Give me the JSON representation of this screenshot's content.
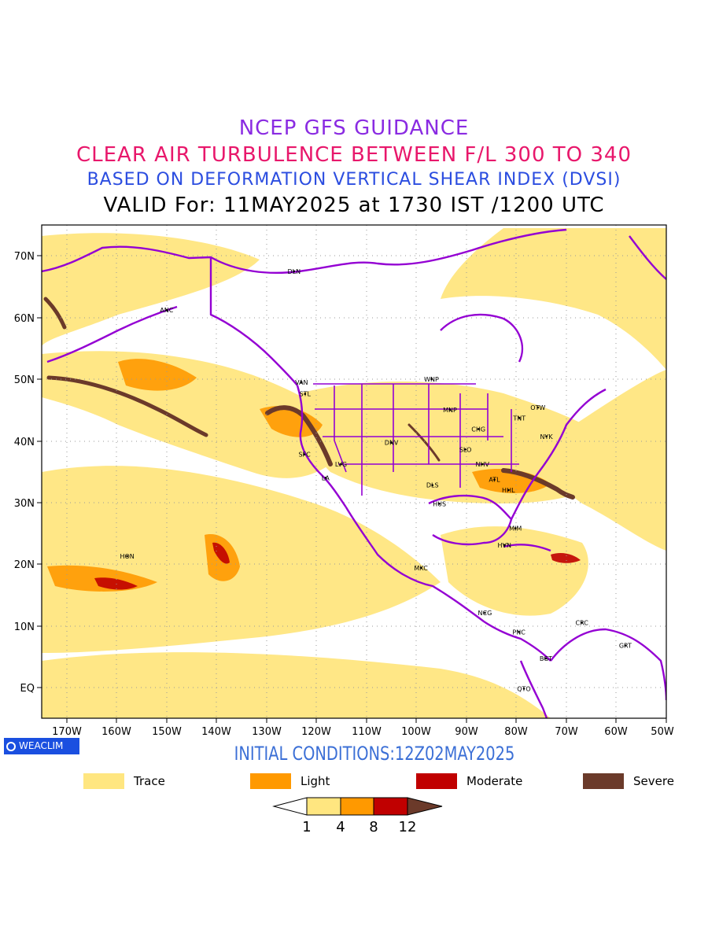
{
  "titles": {
    "line1": "NCEP GFS GUIDANCE",
    "line2": "CLEAR AIR TURBULENCE BETWEEN F/L 300 TO 340",
    "line3": "BASED ON DEFORMATION VERTICAL SHEAR INDEX (DVSI)",
    "line4": "VALID For: 11MAY2025 at 1730 IST /1200 UTC"
  },
  "axes": {
    "lat_labels": [
      "70N",
      "60N",
      "50N",
      "40N",
      "30N",
      "20N",
      "10N",
      "EQ"
    ],
    "lon_labels": [
      "170W",
      "160W",
      "150W",
      "140W",
      "130W",
      "120W",
      "110W",
      "100W",
      "90W",
      "80W",
      "70W",
      "60W",
      "50W"
    ],
    "lat_range": [
      -5,
      75
    ],
    "lon_range": [
      -175,
      -50
    ]
  },
  "stations": [
    {
      "code": "ANC",
      "lon": -150,
      "lat": 61.2
    },
    {
      "code": "DLN",
      "lon": -124.5,
      "lat": 67.5
    },
    {
      "code": "VAN",
      "lon": -123,
      "lat": 49.5
    },
    {
      "code": "STL",
      "lon": -122.3,
      "lat": 47.6
    },
    {
      "code": "WNP",
      "lon": -97,
      "lat": 50
    },
    {
      "code": "MNP",
      "lon": -93.3,
      "lat": 45
    },
    {
      "code": "OTW",
      "lon": -75.7,
      "lat": 45.4
    },
    {
      "code": "TNT",
      "lon": -79.4,
      "lat": 43.7
    },
    {
      "code": "CHG",
      "lon": -87.6,
      "lat": 41.9
    },
    {
      "code": "NYK",
      "lon": -74,
      "lat": 40.7
    },
    {
      "code": "DNV",
      "lon": -105,
      "lat": 39.7
    },
    {
      "code": "SFC",
      "lon": -122.4,
      "lat": 37.8
    },
    {
      "code": "LVG",
      "lon": -115.1,
      "lat": 36.2
    },
    {
      "code": "SLO",
      "lon": -90.2,
      "lat": 38.6
    },
    {
      "code": "NHV",
      "lon": -86.8,
      "lat": 36.2
    },
    {
      "code": "LA",
      "lon": -118.2,
      "lat": 34
    },
    {
      "code": "ATL",
      "lon": -84.4,
      "lat": 33.7
    },
    {
      "code": "DLS",
      "lon": -96.8,
      "lat": 32.8
    },
    {
      "code": "HHL",
      "lon": -81.6,
      "lat": 32
    },
    {
      "code": "HUS",
      "lon": -95.4,
      "lat": 29.8
    },
    {
      "code": "MIM",
      "lon": -80.2,
      "lat": 25.8
    },
    {
      "code": "HVN",
      "lon": -82.4,
      "lat": 23.1
    },
    {
      "code": "HON",
      "lon": -157.9,
      "lat": 21.3
    },
    {
      "code": "MXC",
      "lon": -99.1,
      "lat": 19.4
    },
    {
      "code": "NCG",
      "lon": -86.3,
      "lat": 12.1
    },
    {
      "code": "CRC",
      "lon": -66.9,
      "lat": 10.5
    },
    {
      "code": "PNC",
      "lon": -79.5,
      "lat": 9
    },
    {
      "code": "GRT",
      "lon": -58.2,
      "lat": 6.8
    },
    {
      "code": "BGT",
      "lon": -74.1,
      "lat": 4.7
    },
    {
      "code": "QTO",
      "lon": -78.5,
      "lat": -0.2
    }
  ],
  "badge": {
    "text": "WEACLIM"
  },
  "initial_conditions": "INITIAL CONDITIONS:12Z02MAY2025",
  "legend": [
    {
      "label": "Trace",
      "color": "#ffe680"
    },
    {
      "label": "Light",
      "color": "#ff9900"
    },
    {
      "label": "Moderate",
      "color": "#c00000"
    },
    {
      "label": "Severe",
      "color": "#6b3a2a"
    }
  ],
  "colorbar": {
    "ticks": [
      "1",
      "4",
      "8",
      "12"
    ],
    "colors": [
      "#ffffff",
      "#ffe680",
      "#ff9900",
      "#c00000",
      "#6b3a2a"
    ]
  },
  "colors": {
    "coast": "#9400d3",
    "trace": "#ffe680",
    "light": "#ff9900",
    "moderate": "#c00000",
    "severe": "#6b3a2a"
  }
}
